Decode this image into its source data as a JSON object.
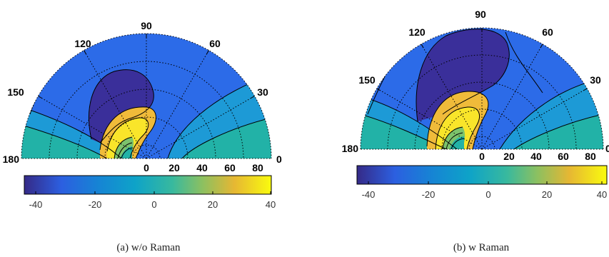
{
  "figure": {
    "panels": [
      {
        "caption": "(a) w/o Raman"
      },
      {
        "caption": "(b) w Raman"
      }
    ]
  },
  "chart_data": [
    {
      "type": "polar contour",
      "title": "",
      "caption": "(a) w/o Raman",
      "angle_ticks": [
        "180",
        "150",
        "120",
        "90",
        "60",
        "30",
        "0"
      ],
      "angle_range_deg": [
        0,
        180
      ],
      "radial_ticks": [
        "0",
        "20",
        "40",
        "60",
        "80"
      ],
      "radial_range": [
        0,
        90
      ],
      "grid": true,
      "grid_style": "dotted",
      "colorbar": {
        "placement": "bottom",
        "colormap": "parula",
        "ticks": [
          "-40",
          "-20",
          "0",
          "20",
          "40"
        ],
        "range": [
          -45,
          40
        ]
      },
      "contour_level_colors": [
        "#3a2f9a",
        "#2c6be8",
        "#1d9ad6",
        "#22b2a7",
        "#7cc36c",
        "#f0bb3a",
        "#f9e52a"
      ],
      "regions": [
        {
          "level": -40,
          "color": "#3a2f9a",
          "description_value": "minimum lobe near 105-120 deg"
        },
        {
          "level": -25,
          "color": "#2c6be8"
        },
        {
          "level": -15,
          "color": "#1d9ad6"
        },
        {
          "level": -5,
          "color": "#22b2a7"
        },
        {
          "level": 25,
          "color": "#f0bb3a"
        },
        {
          "level": 40,
          "color": "#f9e52a"
        }
      ]
    },
    {
      "type": "polar contour",
      "title": "",
      "caption": "(b) w Raman",
      "angle_ticks": [
        "180",
        "150",
        "120",
        "90",
        "60",
        "30",
        "0"
      ],
      "angle_range_deg": [
        0,
        180
      ],
      "radial_ticks": [
        "0",
        "20",
        "40",
        "60",
        "80"
      ],
      "radial_range": [
        0,
        90
      ],
      "grid": true,
      "grid_style": "dotted",
      "colorbar": {
        "placement": "bottom",
        "colormap": "parula",
        "ticks": [
          "-40",
          "-20",
          "0",
          "20",
          "40"
        ],
        "range": [
          -45,
          40
        ]
      },
      "contour_level_colors": [
        "#3a2f9a",
        "#2c6be8",
        "#1d9ad6",
        "#22b2a7",
        "#7cc36c",
        "#f0bb3a",
        "#f9e52a"
      ],
      "regions": [
        {
          "level": -40,
          "color": "#3a2f9a",
          "description_value": "minimum lobe spanning 90-125 deg"
        },
        {
          "level": -25,
          "color": "#2c6be8"
        },
        {
          "level": -15,
          "color": "#1d9ad6"
        },
        {
          "level": -5,
          "color": "#22b2a7"
        },
        {
          "level": 25,
          "color": "#f0bb3a"
        },
        {
          "level": 40,
          "color": "#f9e52a"
        }
      ]
    }
  ]
}
